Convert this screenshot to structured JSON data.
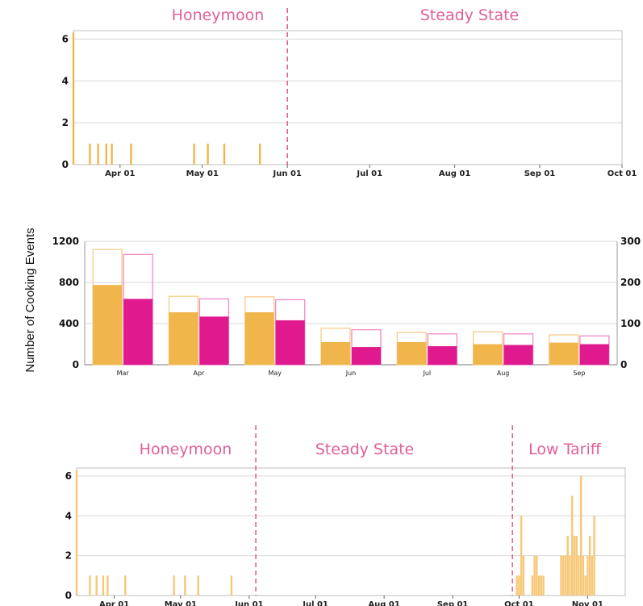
{
  "ylabel": "Number of Cooking Events",
  "colors": {
    "gold": "#f0b64c",
    "pink": "#e0198f",
    "annot": "#e0609a",
    "grid": "#d8d8d8",
    "outline_gold": "#f7cd8a",
    "outline_pink": "#f08ac6",
    "bar3": "#f6c878"
  },
  "chart_data": [
    {
      "type": "bar",
      "annotations": [
        "Honeymoon",
        "Steady State"
      ],
      "phase_boundaries": [
        "2021-06-01"
      ],
      "ylim": [
        0,
        6.4
      ],
      "yticks": [
        0,
        2,
        4,
        6
      ],
      "xlim": [
        "2021-03-15",
        "2021-10-01"
      ],
      "xtick_labels": [
        "Apr 01",
        "May 01",
        "Jun 01",
        "Jul 01",
        "Aug 01",
        "Sep 01",
        "Oct 01"
      ],
      "xtick_dates": [
        "2021-04-01",
        "2021-05-01",
        "2021-06-01",
        "2021-07-01",
        "2021-08-01",
        "2021-09-01",
        "2021-10-01"
      ],
      "events": [
        {
          "date": "2021-03-15",
          "value": 6.3
        },
        {
          "date": "2021-03-21",
          "value": 1
        },
        {
          "date": "2021-03-24",
          "value": 1
        },
        {
          "date": "2021-03-27",
          "value": 1
        },
        {
          "date": "2021-03-29",
          "value": 1
        },
        {
          "date": "2021-04-05",
          "value": 1
        },
        {
          "date": "2021-04-28",
          "value": 1
        },
        {
          "date": "2021-05-03",
          "value": 1
        },
        {
          "date": "2021-05-09",
          "value": 1
        },
        {
          "date": "2021-05-22",
          "value": 1
        }
      ]
    },
    {
      "type": "bar",
      "categories": [
        "Mar",
        "Apr",
        "May",
        "Jun",
        "Jul",
        "Aug",
        "Sep"
      ],
      "ylim": [
        0,
        1200
      ],
      "yticks": [
        0,
        400,
        800,
        1200
      ],
      "y2lim": [
        0,
        300
      ],
      "y2ticks": [
        0,
        100,
        200,
        300
      ],
      "series": [
        {
          "axis": "left",
          "values": [
            775,
            510,
            510,
            220,
            220,
            200,
            215
          ],
          "totals": [
            1120,
            665,
            660,
            355,
            315,
            320,
            290
          ]
        },
        {
          "axis": "right",
          "values": [
            160,
            117,
            108,
            43,
            45,
            48,
            50
          ],
          "totals": [
            268,
            160,
            158,
            85,
            75,
            75,
            70
          ]
        }
      ]
    },
    {
      "type": "bar",
      "annotations": [
        "Honeymoon",
        "Steady State",
        "Low Tariff"
      ],
      "phase_boundaries": [
        "2021-06-04",
        "2021-09-28"
      ],
      "ylim": [
        0,
        6.4
      ],
      "yticks": [
        0,
        2,
        4,
        6
      ],
      "xlim": [
        "2021-03-15",
        "2021-11-18"
      ],
      "xtick_labels": [
        "Apr 01",
        "May 01",
        "Jun 01",
        "Jul 01",
        "Aug 01",
        "Sep 01",
        "Oct 01",
        "Nov 01"
      ],
      "xtick_dates": [
        "2021-04-01",
        "2021-05-01",
        "2021-06-01",
        "2021-07-01",
        "2021-08-01",
        "2021-09-01",
        "2021-10-01",
        "2021-11-01"
      ],
      "events": [
        {
          "date": "2021-03-15",
          "value": 6.3
        },
        {
          "date": "2021-03-21",
          "value": 1
        },
        {
          "date": "2021-03-24",
          "value": 1
        },
        {
          "date": "2021-03-27",
          "value": 1
        },
        {
          "date": "2021-03-29",
          "value": 1
        },
        {
          "date": "2021-04-06",
          "value": 1
        },
        {
          "date": "2021-04-28",
          "value": 1
        },
        {
          "date": "2021-05-03",
          "value": 1
        },
        {
          "date": "2021-05-09",
          "value": 1
        },
        {
          "date": "2021-05-24",
          "value": 1
        },
        {
          "date": "2021-09-30",
          "value": 1
        },
        {
          "date": "2021-10-01",
          "value": 1
        },
        {
          "date": "2021-10-02",
          "value": 4
        },
        {
          "date": "2021-10-03",
          "value": 2
        },
        {
          "date": "2021-10-07",
          "value": 1
        },
        {
          "date": "2021-10-08",
          "value": 2
        },
        {
          "date": "2021-10-09",
          "value": 2
        },
        {
          "date": "2021-10-10",
          "value": 1
        },
        {
          "date": "2021-10-11",
          "value": 1
        },
        {
          "date": "2021-10-12",
          "value": 1
        },
        {
          "date": "2021-10-20",
          "value": 2
        },
        {
          "date": "2021-10-21",
          "value": 2
        },
        {
          "date": "2021-10-22",
          "value": 2
        },
        {
          "date": "2021-10-23",
          "value": 3
        },
        {
          "date": "2021-10-24",
          "value": 2
        },
        {
          "date": "2021-10-25",
          "value": 5
        },
        {
          "date": "2021-10-26",
          "value": 3
        },
        {
          "date": "2021-10-27",
          "value": 3
        },
        {
          "date": "2021-10-28",
          "value": 2
        },
        {
          "date": "2021-10-29",
          "value": 6
        },
        {
          "date": "2021-10-30",
          "value": 2
        },
        {
          "date": "2021-10-31",
          "value": 1
        },
        {
          "date": "2021-11-01",
          "value": 2
        },
        {
          "date": "2021-11-02",
          "value": 3
        },
        {
          "date": "2021-11-03",
          "value": 2
        },
        {
          "date": "2021-11-04",
          "value": 4
        }
      ]
    }
  ]
}
